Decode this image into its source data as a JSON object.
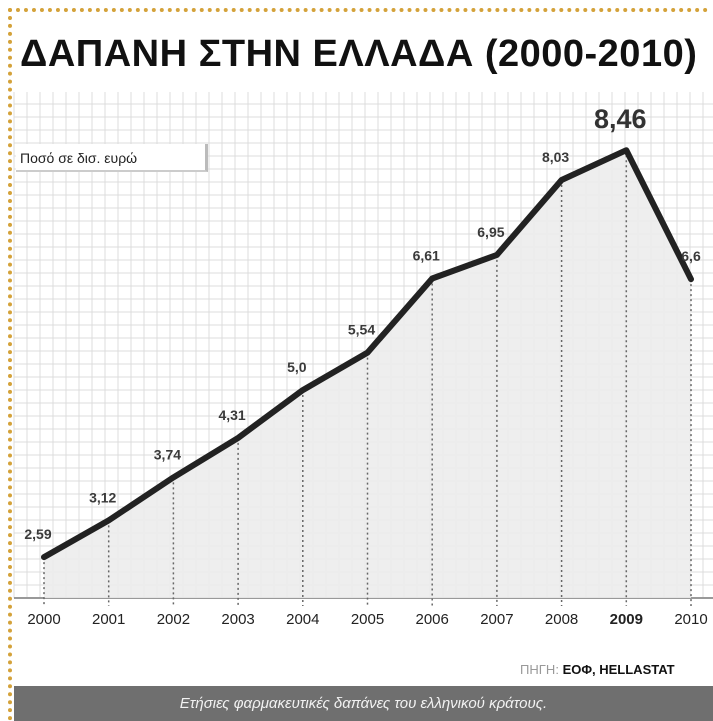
{
  "chart_data": {
    "type": "line",
    "title": "ΔΑΠΑΝΗ ΣΤΗΝ ΕΛΛΑΔΑ (2000-2010)",
    "ylabel": "Ποσό σε δισ. ευρώ",
    "xlabel": "",
    "x": [
      "2000",
      "2001",
      "2002",
      "2003",
      "2004",
      "2005",
      "2006",
      "2007",
      "2008",
      "2009",
      "2010"
    ],
    "values": [
      2.59,
      3.12,
      3.74,
      4.31,
      5.0,
      5.54,
      6.61,
      6.95,
      8.03,
      8.46,
      6.6
    ],
    "data_labels": [
      "2,59",
      "3,12",
      "3,74",
      "4,31",
      "5,0",
      "5,54",
      "6,61",
      "6,95",
      "8,03",
      "8,46",
      "6,6"
    ],
    "highlight_index": 9,
    "ylim": [
      2.0,
      9.3
    ],
    "grid": true,
    "line_color": "#222222",
    "area_color": "#ececec",
    "grid_color": "#dcdcdc",
    "source_prefix": "ΠΗΓΗ:",
    "source": "ΕΟΦ, HELLASTAT",
    "caption": "Ετήσιες φαρμακευτικές δαπάνες του ελληνικού κράτους."
  },
  "frame": {
    "border_color": "#d4a23a",
    "caption_bar_color": "#6f6f6f"
  }
}
